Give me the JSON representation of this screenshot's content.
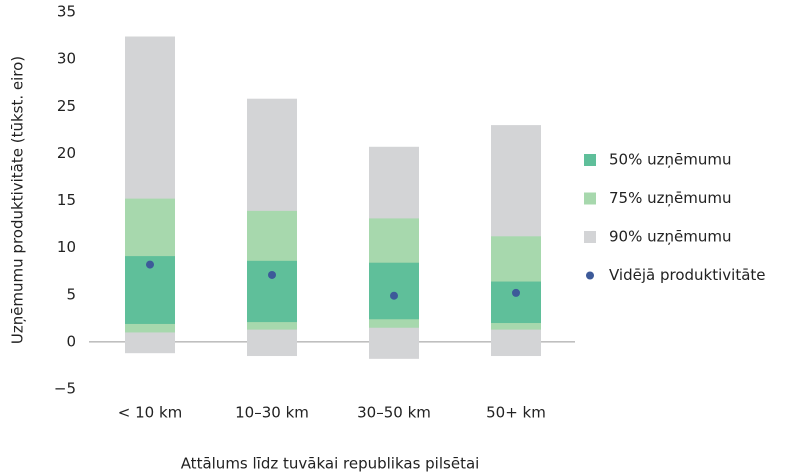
{
  "chart_data": {
    "type": "range_bar",
    "xlabel": "Attālums līdz tuvākai republikas pilsētai",
    "ylabel": "Uzņēmumu produktivitāte (tūkst. eiro)",
    "categories": [
      "< 10 km",
      "10–30 km",
      "30–50 km",
      "50+ km"
    ],
    "series": [
      {
        "name": "90% uzņēmumu",
        "color": "#d3d4d6",
        "low": [
          -1.2,
          -1.5,
          -1.8,
          -1.5
        ],
        "high": [
          32.4,
          25.8,
          20.7,
          23.0
        ]
      },
      {
        "name": "75% uzņēmumu",
        "color": "#a7d8ad",
        "low": [
          1.0,
          1.3,
          1.5,
          1.3
        ],
        "high": [
          15.2,
          13.9,
          13.1,
          11.2
        ]
      },
      {
        "name": "50% uzņēmumu",
        "color": "#5fbf9a",
        "low": [
          1.9,
          2.1,
          2.4,
          2.0
        ],
        "high": [
          9.1,
          8.6,
          8.4,
          6.4
        ]
      },
      {
        "name": "Vidējā produktivitāte",
        "color": "#3d5a99",
        "values": [
          8.2,
          7.1,
          4.9,
          5.2
        ]
      }
    ],
    "ylim": [
      -5,
      35
    ],
    "yticks": [
      {
        "value": -5,
        "label": "−5"
      },
      0,
      5,
      10,
      15,
      20,
      25,
      30,
      35
    ],
    "grid": false,
    "legend": "right"
  }
}
